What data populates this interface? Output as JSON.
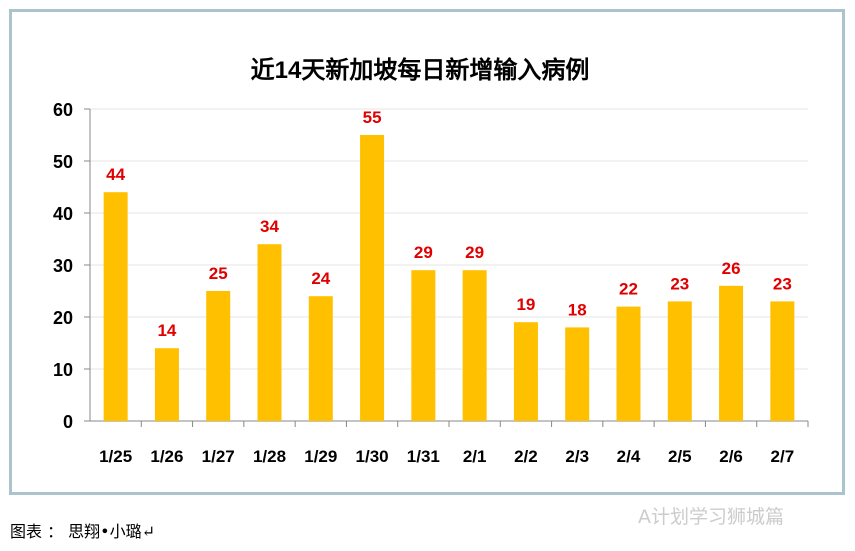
{
  "chart_data": {
    "type": "bar",
    "title": "近14天新加坡每日新增输入病例",
    "categories": [
      "1/25",
      "1/26",
      "1/27",
      "1/28",
      "1/29",
      "1/30",
      "1/31",
      "2/1",
      "2/2",
      "2/3",
      "2/4",
      "2/5",
      "2/6",
      "2/7"
    ],
    "values": [
      44,
      14,
      25,
      34,
      24,
      55,
      29,
      29,
      19,
      18,
      22,
      23,
      26,
      23
    ],
    "ylim": [
      0,
      60
    ],
    "yticks": [
      0,
      10,
      20,
      30,
      40,
      50,
      60
    ],
    "grid": true,
    "bar_color": "#ffc000",
    "label_color": "#e00000"
  },
  "caption": "图表 ： 思翔•小璐↵",
  "watermark": "A计划学习狮城篇"
}
